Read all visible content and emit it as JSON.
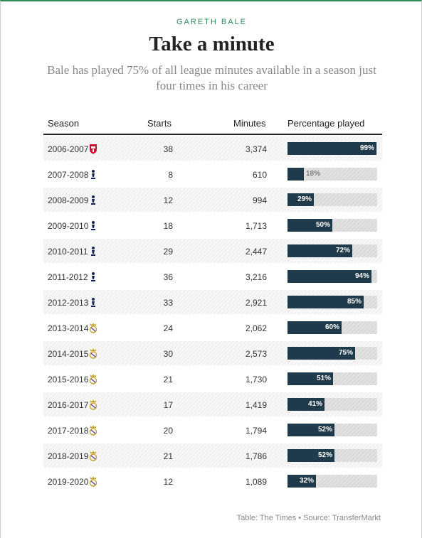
{
  "kicker": "GARETH BALE",
  "title": "Take a minute",
  "subtitle": "Bale has played 75% of all league minutes available in a season just four times in his career",
  "source": "Table: The Times • Source: TransferMarkt",
  "colors": {
    "accent": "#2e8b57",
    "bar": "#1f3a4a",
    "track": "#dcdcdc",
    "crest_southampton": "#c8102e",
    "crest_tottenham": "#132257",
    "crest_real_madrid": "#c9a227"
  },
  "chart_data": {
    "type": "table",
    "columns": [
      "Season",
      "Starts",
      "Minutes",
      "Percentage played"
    ],
    "rows": [
      {
        "season": "2006-2007",
        "crest": "southampton-crest-icon",
        "starts": "38",
        "minutes": "3,374",
        "percentage": 99,
        "label": "99%"
      },
      {
        "season": "2007-2008",
        "crest": "tottenham-crest-icon",
        "starts": "8",
        "minutes": "610",
        "percentage": 18,
        "label": "18%"
      },
      {
        "season": "2008-2009",
        "crest": "tottenham-crest-icon",
        "starts": "12",
        "minutes": "994",
        "percentage": 29,
        "label": "29%"
      },
      {
        "season": "2009-2010",
        "crest": "tottenham-crest-icon",
        "starts": "18",
        "minutes": "1,713",
        "percentage": 50,
        "label": "50%"
      },
      {
        "season": "2010-2011",
        "crest": "tottenham-crest-icon",
        "starts": "29",
        "minutes": "2,447",
        "percentage": 72,
        "label": "72%"
      },
      {
        "season": "2011-2012",
        "crest": "tottenham-crest-icon",
        "starts": "36",
        "minutes": "3,216",
        "percentage": 94,
        "label": "94%"
      },
      {
        "season": "2012-2013",
        "crest": "tottenham-crest-icon",
        "starts": "33",
        "minutes": "2,921",
        "percentage": 85,
        "label": "85%"
      },
      {
        "season": "2013-2014",
        "crest": "real-madrid-crest-icon",
        "starts": "24",
        "minutes": "2,062",
        "percentage": 60,
        "label": "60%"
      },
      {
        "season": "2014-2015",
        "crest": "real-madrid-crest-icon",
        "starts": "30",
        "minutes": "2,573",
        "percentage": 75,
        "label": "75%"
      },
      {
        "season": "2015-2016",
        "crest": "real-madrid-crest-icon",
        "starts": "21",
        "minutes": "1,730",
        "percentage": 51,
        "label": "51%"
      },
      {
        "season": "2016-2017",
        "crest": "real-madrid-crest-icon",
        "starts": "17",
        "minutes": "1,419",
        "percentage": 41,
        "label": "41%"
      },
      {
        "season": "2017-2018",
        "crest": "real-madrid-crest-icon",
        "starts": "20",
        "minutes": "1,794",
        "percentage": 52,
        "label": "52%"
      },
      {
        "season": "2018-2019",
        "crest": "real-madrid-crest-icon",
        "starts": "21",
        "minutes": "1,786",
        "percentage": 52,
        "label": "52%"
      },
      {
        "season": "2019-2020",
        "crest": "real-madrid-crest-icon",
        "starts": "12",
        "minutes": "1,089",
        "percentage": 32,
        "label": "32%"
      }
    ],
    "xlim": [
      0,
      100
    ]
  }
}
